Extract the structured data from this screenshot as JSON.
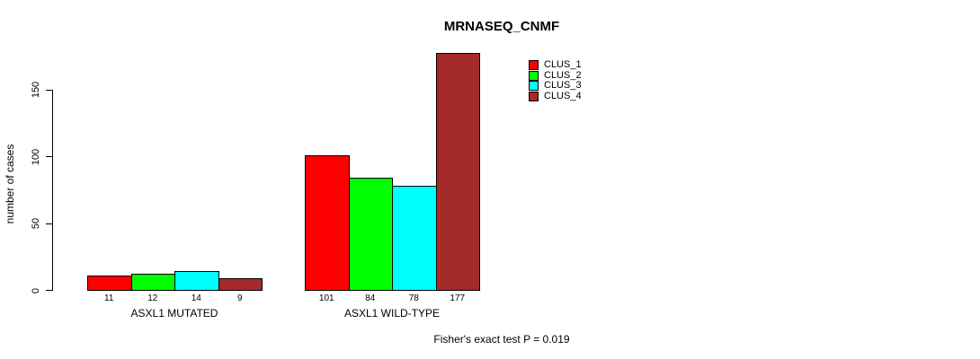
{
  "chart_data": {
    "type": "bar",
    "title": "MRNASEQ_CNMF",
    "ylabel": "number of cases",
    "xlabel": "",
    "categories": [
      "ASXL1 MUTATED",
      "ASXL1 WILD-TYPE"
    ],
    "series": [
      {
        "name": "CLUS_1",
        "color": "#FF0000",
        "values": [
          11,
          101
        ]
      },
      {
        "name": "CLUS_2",
        "color": "#00FF00",
        "values": [
          12,
          84
        ]
      },
      {
        "name": "CLUS_3",
        "color": "#00FFFF",
        "values": [
          14,
          78
        ]
      },
      {
        "name": "CLUS_4",
        "color": "#A52A2A",
        "values": [
          9,
          177
        ]
      }
    ],
    "value_labels": [
      [
        11,
        12,
        14,
        9
      ],
      [
        101,
        84,
        78,
        177
      ]
    ],
    "yticks": [
      0,
      50,
      100,
      150
    ],
    "ylim": [
      0,
      177
    ],
    "grid": false,
    "legend_position": "top-right",
    "footnote": "Fisher's exact test P = 0.019"
  },
  "colors": {
    "axis": "#000000",
    "text": "#000000",
    "background": "#FFFFFF"
  }
}
